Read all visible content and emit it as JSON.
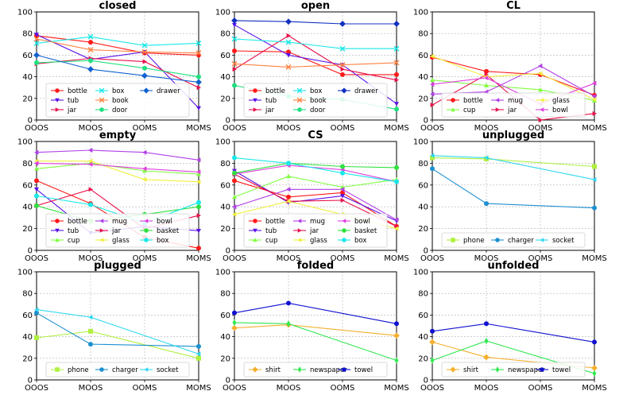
{
  "figure": {
    "x_categories": [
      "OOOS",
      "MOOS",
      "OOMS",
      "MOMS"
    ],
    "ylim": [
      0,
      100
    ],
    "yticks": [
      0,
      20,
      40,
      60,
      80,
      100
    ]
  },
  "chart_data": [
    {
      "type": "line",
      "title": "closed",
      "legend_cols": 3,
      "categories": [
        "OOOS",
        "MOOS",
        "OOMS",
        "MOMS"
      ],
      "ylim": [
        0,
        100
      ],
      "series": [
        {
          "name": "bottle",
          "color": "#ff1a1a",
          "marker": "circle",
          "values": [
            78,
            72,
            62,
            60
          ]
        },
        {
          "name": "tub",
          "color": "#5a10e8",
          "marker": "tri_down",
          "values": [
            79,
            56,
            63,
            11
          ]
        },
        {
          "name": "jar",
          "color": "#e8104a",
          "marker": "tri_right",
          "values": [
            52,
            57,
            54,
            30
          ]
        },
        {
          "name": "box",
          "color": "#1ae8e8",
          "marker": "x",
          "values": [
            71,
            77,
            69,
            71
          ]
        },
        {
          "name": "book",
          "color": "#ff8040",
          "marker": "x",
          "values": [
            75,
            65,
            63,
            62
          ]
        },
        {
          "name": "door",
          "color": "#20e080",
          "marker": "circle",
          "values": [
            53,
            55,
            48,
            40
          ]
        },
        {
          "name": "drawer",
          "color": "#1060d0",
          "marker": "diamond",
          "values": [
            60,
            47,
            41,
            35
          ]
        }
      ]
    },
    {
      "type": "line",
      "title": "open",
      "legend_cols": 3,
      "categories": [
        "OOOS",
        "MOOS",
        "OOMS",
        "MOMS"
      ],
      "ylim": [
        0,
        100
      ],
      "series": [
        {
          "name": "bottle",
          "color": "#ff1a1a",
          "marker": "circle",
          "values": [
            64,
            63,
            42,
            42
          ]
        },
        {
          "name": "tub",
          "color": "#5a10e8",
          "marker": "tri_down",
          "values": [
            88,
            60,
            51,
            15
          ]
        },
        {
          "name": "jar",
          "color": "#e8104a",
          "marker": "tri_right",
          "values": [
            47,
            78,
            47,
            37
          ]
        },
        {
          "name": "box",
          "color": "#1ae8e8",
          "marker": "x",
          "values": [
            75,
            72,
            66,
            66
          ]
        },
        {
          "name": "book",
          "color": "#ff8040",
          "marker": "x",
          "values": [
            52,
            49,
            51,
            53
          ]
        },
        {
          "name": "door",
          "color": "#20e080",
          "marker": "circle",
          "values": [
            32,
            22,
            19,
            10
          ]
        },
        {
          "name": "drawer",
          "color": "#1030c0",
          "marker": "diamond",
          "values": [
            92,
            91,
            89,
            89
          ]
        }
      ]
    },
    {
      "type": "line",
      "title": "CL",
      "legend_cols": 3,
      "categories": [
        "OOOS",
        "MOOS",
        "OOMS",
        "MOMS"
      ],
      "ylim": [
        0,
        100
      ],
      "series": [
        {
          "name": "bottle",
          "color": "#ff1a1a",
          "marker": "circle",
          "values": [
            58,
            45,
            42,
            23
          ]
        },
        {
          "name": "cup",
          "color": "#80ff40",
          "marker": "tri_up",
          "values": [
            37,
            32,
            28,
            18
          ]
        },
        {
          "name": "mug",
          "color": "#b040e8",
          "marker": "tri_left",
          "values": [
            24,
            26,
            50,
            22
          ]
        },
        {
          "name": "jar",
          "color": "#e8104a",
          "marker": "tri_right",
          "values": [
            14,
            42,
            0,
            6
          ]
        },
        {
          "name": "glass",
          "color": "#f0f040",
          "marker": "tri_left",
          "values": [
            59,
            40,
            43,
            19
          ]
        },
        {
          "name": "bowl",
          "color": "#e040e0",
          "marker": "tri_left",
          "values": [
            33,
            39,
            15,
            34
          ]
        }
      ]
    },
    {
      "type": "line",
      "title": "empty",
      "legend_cols": 3,
      "categories": [
        "OOOS",
        "MOOS",
        "OOMS",
        "MOMS"
      ],
      "ylim": [
        0,
        100
      ],
      "series": [
        {
          "name": "bottle",
          "color": "#ff1a1a",
          "marker": "circle",
          "values": [
            64,
            43,
            12,
            2
          ]
        },
        {
          "name": "tub",
          "color": "#5a10e8",
          "marker": "tri_down",
          "values": [
            56,
            16,
            22,
            18
          ]
        },
        {
          "name": "cup",
          "color": "#80ff40",
          "marker": "tri_up",
          "values": [
            75,
            80,
            73,
            70
          ]
        },
        {
          "name": "mug",
          "color": "#b040e8",
          "marker": "tri_left",
          "values": [
            90,
            92,
            90,
            83
          ]
        },
        {
          "name": "jar",
          "color": "#e8104a",
          "marker": "tri_right",
          "values": [
            41,
            56,
            20,
            32
          ]
        },
        {
          "name": "glass",
          "color": "#f0f040",
          "marker": "tri_left",
          "values": [
            82,
            82,
            65,
            63
          ]
        },
        {
          "name": "bowl",
          "color": "#e040e0",
          "marker": "tri_left",
          "values": [
            80,
            79,
            75,
            72
          ]
        },
        {
          "name": "basket",
          "color": "#30e040",
          "marker": "circle",
          "values": [
            41,
            27,
            33,
            40
          ]
        },
        {
          "name": "box",
          "color": "#1ae8e8",
          "marker": "circle",
          "values": [
            50,
            42,
            25,
            44
          ]
        }
      ]
    },
    {
      "type": "line",
      "title": "CS",
      "legend_cols": 3,
      "categories": [
        "OOOS",
        "MOOS",
        "OOMS",
        "MOMS"
      ],
      "ylim": [
        0,
        100
      ],
      "series": [
        {
          "name": "bottle",
          "color": "#ff1a1a",
          "marker": "circle",
          "values": [
            64,
            49,
            53,
            22
          ]
        },
        {
          "name": "tub",
          "color": "#5a10e8",
          "marker": "tri_down",
          "values": [
            73,
            44,
            50,
            27
          ]
        },
        {
          "name": "cup",
          "color": "#80ff40",
          "marker": "tri_up",
          "values": [
            49,
            68,
            58,
            65
          ]
        },
        {
          "name": "mug",
          "color": "#b040e8",
          "marker": "tri_left",
          "values": [
            40,
            56,
            56,
            28
          ]
        },
        {
          "name": "jar",
          "color": "#e8104a",
          "marker": "tri_right",
          "values": [
            70,
            45,
            46,
            22
          ]
        },
        {
          "name": "glass",
          "color": "#f0f040",
          "marker": "tri_left",
          "values": [
            33,
            45,
            33,
            20
          ]
        },
        {
          "name": "bowl",
          "color": "#e040e0",
          "marker": "tri_left",
          "values": [
            70,
            78,
            74,
            63
          ]
        },
        {
          "name": "basket",
          "color": "#30e040",
          "marker": "circle",
          "values": [
            71,
            80,
            77,
            76
          ]
        },
        {
          "name": "box",
          "color": "#1ae8e8",
          "marker": "circle",
          "values": [
            85,
            80,
            71,
            63
          ]
        }
      ]
    },
    {
      "type": "line",
      "title": "unplugged",
      "legend_cols": 3,
      "categories": [
        "OOOS",
        "MOOS",
        "OOMS",
        "MOMS"
      ],
      "ylim": [
        0,
        100
      ],
      "series": [
        {
          "name": "phone",
          "color": "#b0f040",
          "marker": "square",
          "values": [
            85,
            84,
            null,
            77
          ]
        },
        {
          "name": "charger",
          "color": "#1e90d0",
          "marker": "circle",
          "values": [
            75,
            43,
            null,
            39
          ]
        },
        {
          "name": "socket",
          "color": "#30d8f0",
          "marker": "tri_left",
          "values": [
            87,
            85,
            null,
            65
          ]
        }
      ]
    },
    {
      "type": "line",
      "title": "plugged",
      "legend_cols": 3,
      "categories": [
        "OOOS",
        "MOOS",
        "OOMS",
        "MOMS"
      ],
      "ylim": [
        0,
        100
      ],
      "series": [
        {
          "name": "phone",
          "color": "#b0f040",
          "marker": "square",
          "values": [
            39,
            45,
            null,
            20
          ]
        },
        {
          "name": "charger",
          "color": "#1e90d0",
          "marker": "circle",
          "values": [
            62,
            33,
            null,
            31
          ]
        },
        {
          "name": "socket",
          "color": "#30d8f0",
          "marker": "tri_left",
          "values": [
            65,
            58,
            null,
            24
          ]
        }
      ]
    },
    {
      "type": "line",
      "title": "folded",
      "legend_cols": 3,
      "categories": [
        "OOOS",
        "MOOS",
        "OOMS",
        "MOMS"
      ],
      "ylim": [
        0,
        100
      ],
      "series": [
        {
          "name": "shirt",
          "color": "#f5b030",
          "marker": "diamond",
          "values": [
            48,
            51,
            null,
            41
          ]
        },
        {
          "name": "newspaper",
          "color": "#30e850",
          "marker": "thin_diamond",
          "values": [
            53,
            52,
            null,
            18
          ]
        },
        {
          "name": "towel",
          "color": "#1010d0",
          "marker": "circle",
          "values": [
            62,
            71,
            null,
            52
          ]
        }
      ]
    },
    {
      "type": "line",
      "title": "unfolded",
      "legend_cols": 3,
      "categories": [
        "OOOS",
        "MOOS",
        "OOMS",
        "MOMS"
      ],
      "ylim": [
        0,
        100
      ],
      "series": [
        {
          "name": "shirt",
          "color": "#f5b030",
          "marker": "diamond",
          "values": [
            35,
            21,
            null,
            11
          ]
        },
        {
          "name": "newspaper",
          "color": "#30e850",
          "marker": "thin_diamond",
          "values": [
            18,
            36,
            null,
            6
          ]
        },
        {
          "name": "towel",
          "color": "#1010d0",
          "marker": "circle",
          "values": [
            45,
            52,
            null,
            35
          ]
        }
      ]
    }
  ]
}
